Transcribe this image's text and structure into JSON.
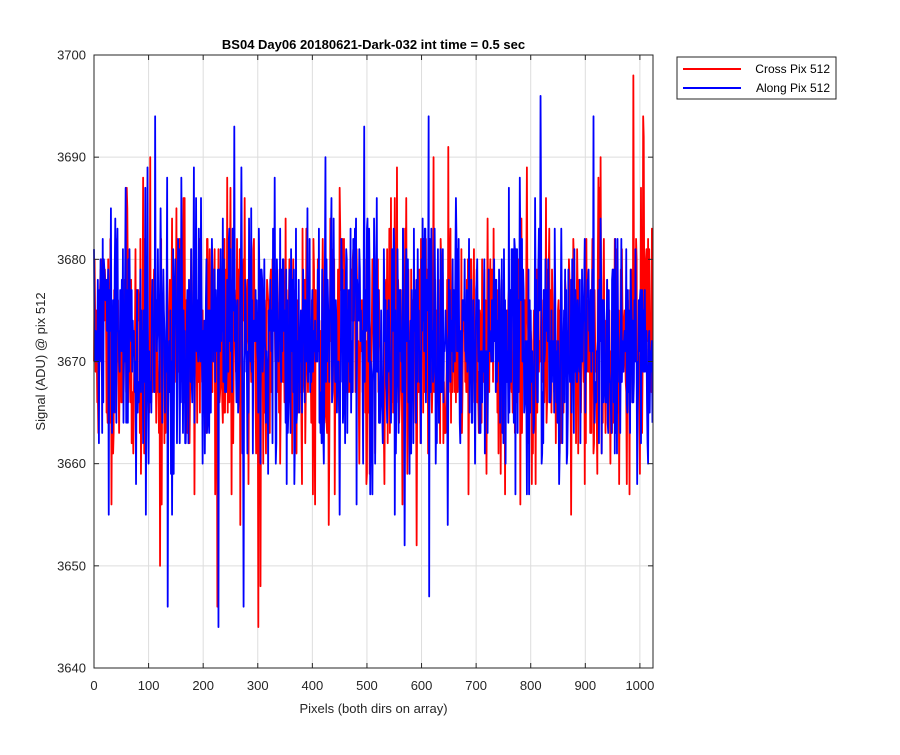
{
  "chart_data": {
    "type": "line",
    "title": "BS04 Day06 20180621-Dark-032 int time = 0.5 sec",
    "xlabel": "Pixels (both dirs on array)",
    "ylabel": "Signal (ADU) @ pix 512",
    "xlim": [
      0,
      1024
    ],
    "ylim": [
      3640,
      3700
    ],
    "xticks": [
      0,
      100,
      200,
      300,
      400,
      500,
      600,
      700,
      800,
      900,
      1000
    ],
    "yticks": [
      3640,
      3650,
      3660,
      3670,
      3680,
      3690,
      3700
    ],
    "grid": true,
    "legend_position": "outside top-right",
    "series": [
      {
        "name": "Cross Pix 512",
        "color": "#ff0000",
        "generated_noise": {
          "count": 1024,
          "mean": 3672,
          "sd": 6.5,
          "min": 3644,
          "max": 3698,
          "seed": 11
        },
        "notable_points": [
          [
            301,
            3644
          ],
          [
            988,
            3698
          ],
          [
            1006,
            3694
          ],
          [
            226,
            3646
          ],
          [
            121,
            3650
          ],
          [
            305,
            3648
          ]
        ]
      },
      {
        "name": "Along Pix 512",
        "color": "#0000ff",
        "generated_noise": {
          "count": 1024,
          "mean": 3672,
          "sd": 6.5,
          "min": 3644,
          "max": 3696,
          "seed": 29
        },
        "notable_points": [
          [
            228,
            3644
          ],
          [
            274,
            3646
          ],
          [
            135,
            3646
          ],
          [
            614,
            3647
          ],
          [
            818,
            3696
          ],
          [
            112,
            3694
          ],
          [
            257,
            3693
          ],
          [
            915,
            3694
          ]
        ]
      }
    ]
  }
}
